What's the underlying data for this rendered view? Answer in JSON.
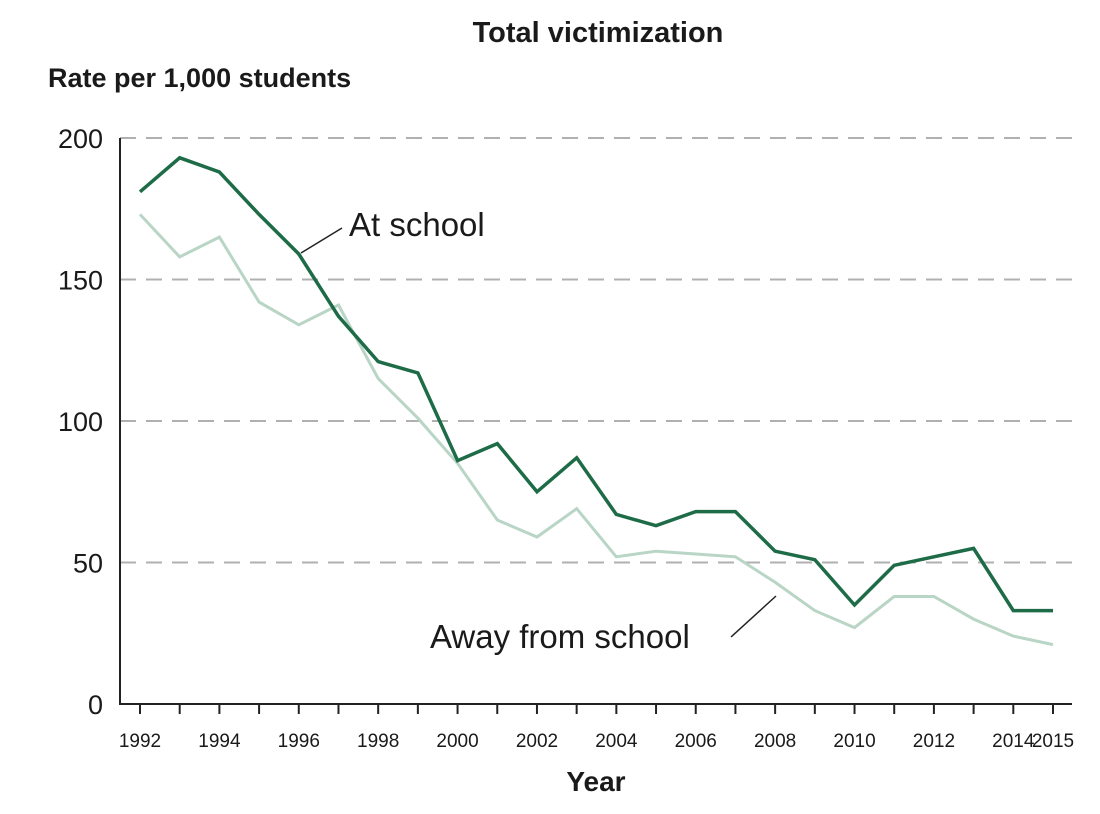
{
  "chart_data": {
    "type": "line",
    "title": "Total victimization",
    "ylabel": "Rate per 1,000 students",
    "xlabel": "Year",
    "ylim": [
      0,
      200
    ],
    "xlim": [
      1992,
      2015
    ],
    "yticks": [
      "0",
      "50",
      "100",
      "150",
      "200"
    ],
    "xticks": [
      "1992",
      "1994",
      "1996",
      "1998",
      "2000",
      "2002",
      "2004",
      "2006",
      "2008",
      "2010",
      "2012",
      "2014",
      "2015"
    ],
    "grid": true,
    "x": [
      1992,
      1993,
      1994,
      1995,
      1996,
      1997,
      1998,
      1999,
      2000,
      2001,
      2002,
      2003,
      2004,
      2005,
      2006,
      2007,
      2008,
      2009,
      2010,
      2011,
      2012,
      2013,
      2014,
      2015
    ],
    "series": [
      {
        "name": "At school",
        "color": "#1e6b47",
        "values": [
          181,
          193,
          188,
          173,
          159,
          137,
          121,
          117,
          86,
          92,
          75,
          87,
          67,
          63,
          68,
          68,
          54,
          51,
          35,
          49,
          52,
          55,
          33,
          33
        ]
      },
      {
        "name": "Away from school",
        "color": "#b8d5c5",
        "values": [
          173,
          158,
          165,
          142,
          134,
          141,
          115,
          101,
          85,
          65,
          59,
          69,
          52,
          54,
          53,
          52,
          43,
          33,
          27,
          38,
          38,
          30,
          24,
          21
        ]
      }
    ]
  }
}
